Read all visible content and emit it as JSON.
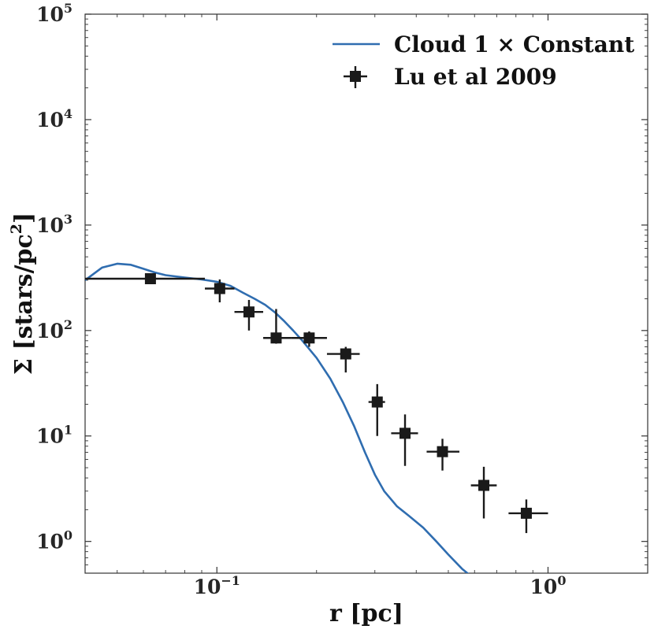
{
  "chart_data": {
    "type": "scatter",
    "xscale": "log",
    "yscale": "log",
    "xlim": [
      0.04,
      2.0
    ],
    "ylim": [
      0.5,
      100000
    ],
    "xlabel": "r [pc]",
    "ylabel": "Σ [stars/pc²]",
    "xlabel_text": "r [pc]",
    "ylabel_base": "Σ [stars/pc",
    "ylabel_sup": "2",
    "ylabel_close": "]",
    "x_ticks": [
      {
        "value": 0.1,
        "base": "10",
        "exp": "−1"
      },
      {
        "value": 1.0,
        "base": "10",
        "exp": "0"
      }
    ],
    "y_ticks": [
      {
        "value": 1,
        "base": "10",
        "exp": "0"
      },
      {
        "value": 10,
        "base": "10",
        "exp": "1"
      },
      {
        "value": 100,
        "base": "10",
        "exp": "2"
      },
      {
        "value": 1000,
        "base": "10",
        "exp": "3"
      },
      {
        "value": 10000,
        "base": "10",
        "exp": "4"
      },
      {
        "value": 100000,
        "base": "10",
        "exp": "5"
      }
    ],
    "legend_position": "top-right",
    "grid": false,
    "series": [
      {
        "name": "Cloud 1 × Constant",
        "kind": "line",
        "color": "#2f6db0",
        "x": [
          0.04,
          0.045,
          0.05,
          0.055,
          0.06,
          0.065,
          0.07,
          0.08,
          0.09,
          0.1,
          0.11,
          0.12,
          0.13,
          0.14,
          0.15,
          0.16,
          0.17,
          0.18,
          0.2,
          0.22,
          0.24,
          0.26,
          0.28,
          0.3,
          0.32,
          0.35,
          0.38,
          0.42,
          0.46,
          0.5,
          0.55,
          0.58
        ],
        "y": [
          300,
          395,
          430,
          420,
          385,
          355,
          335,
          318,
          305,
          290,
          265,
          228,
          200,
          175,
          148,
          122,
          100,
          82,
          55,
          35,
          21,
          12.3,
          7.0,
          4.3,
          3.0,
          2.15,
          1.75,
          1.35,
          1.0,
          0.75,
          0.55,
          0.48
        ]
      },
      {
        "name": "Lu et al 2009",
        "kind": "errorbar",
        "color": "#1a1a1a",
        "points": [
          {
            "x": 0.063,
            "y": 310,
            "xlo": 0.04,
            "xhi": 0.092,
            "ylo": 275,
            "yhi": 340
          },
          {
            "x": 0.102,
            "y": 250,
            "xlo": 0.092,
            "xhi": 0.113,
            "ylo": 185,
            "yhi": 305
          },
          {
            "x": 0.125,
            "y": 150,
            "xlo": 0.113,
            "xhi": 0.138,
            "ylo": 100,
            "yhi": 195
          },
          {
            "x": 0.151,
            "y": 85,
            "xlo": 0.138,
            "xhi": 0.168,
            "ylo": 75,
            "yhi": 160
          },
          {
            "x": 0.19,
            "y": 85,
            "xlo": 0.168,
            "xhi": 0.215,
            "ylo": 70,
            "yhi": 98
          },
          {
            "x": 0.245,
            "y": 60,
            "xlo": 0.215,
            "xhi": 0.27,
            "ylo": 40,
            "yhi": 70
          },
          {
            "x": 0.305,
            "y": 21,
            "xlo": 0.287,
            "xhi": 0.322,
            "ylo": 10,
            "yhi": 31
          },
          {
            "x": 0.37,
            "y": 10.6,
            "xlo": 0.336,
            "xhi": 0.405,
            "ylo": 5.2,
            "yhi": 16
          },
          {
            "x": 0.48,
            "y": 7.1,
            "xlo": 0.43,
            "xhi": 0.54,
            "ylo": 4.7,
            "yhi": 9.4
          },
          {
            "x": 0.64,
            "y": 3.4,
            "xlo": 0.585,
            "xhi": 0.7,
            "ylo": 1.65,
            "yhi": 5.1
          },
          {
            "x": 0.86,
            "y": 1.85,
            "xlo": 0.76,
            "xhi": 1.0,
            "ylo": 1.2,
            "yhi": 2.5
          }
        ]
      }
    ]
  }
}
